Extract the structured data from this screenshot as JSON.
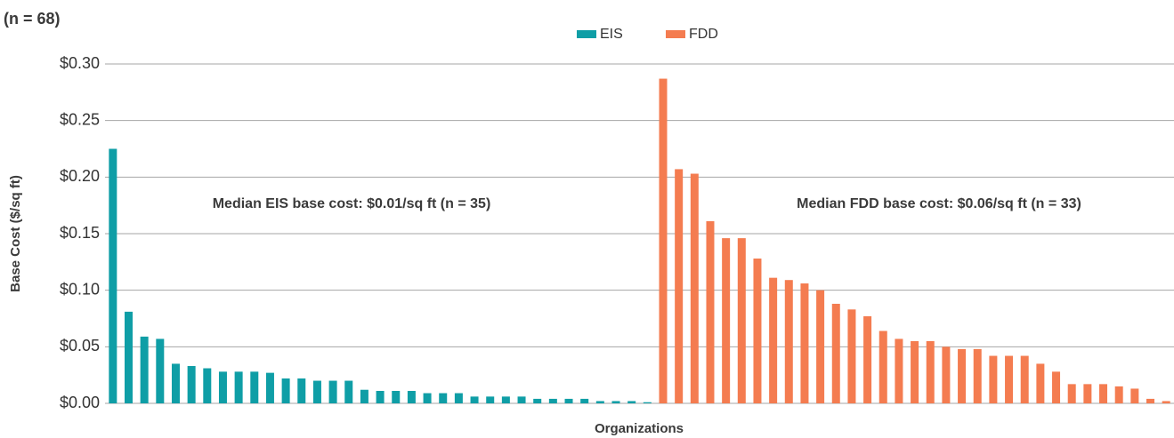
{
  "chart_data": {
    "type": "bar",
    "subtitle": "(n = 68)",
    "ylabel": "Base Cost ($/sq ft)",
    "xlabel": "Organizations",
    "annotations": [
      "Median EIS base cost: $0.01/sq ft (n = 35)",
      "Median FDD base cost: $0.06/sq ft (n = 33)"
    ],
    "legend": "top",
    "grid": true,
    "ylim": [
      0,
      0.3
    ],
    "yticks": [
      {
        "value": 0,
        "label": "$0.00"
      },
      {
        "value": 0.05,
        "label": "$0.05"
      },
      {
        "value": 0.1,
        "label": "$0.10"
      },
      {
        "value": 0.15,
        "label": "$0.15"
      },
      {
        "value": 0.2,
        "label": "$0.20"
      },
      {
        "value": 0.25,
        "label": "$0.25"
      },
      {
        "value": 0.3,
        "label": "$0.30"
      }
    ],
    "categories": [
      null,
      null,
      null,
      null,
      null,
      null,
      null,
      null,
      null,
      null,
      null,
      null,
      null,
      null,
      null,
      null,
      null,
      null,
      null,
      null,
      null,
      null,
      null,
      null,
      null,
      null,
      null,
      null,
      null,
      null,
      null,
      null,
      null,
      null,
      null,
      null,
      null,
      null,
      null,
      null,
      null,
      null,
      null,
      null,
      null,
      null,
      null,
      null,
      null,
      null,
      null,
      null,
      null,
      null,
      null,
      null,
      null,
      null,
      null,
      null,
      null,
      null,
      null,
      null,
      null,
      null,
      null,
      null
    ],
    "series": [
      {
        "name": "EIS",
        "color": "#0f9ea6",
        "values": [
          0.225,
          0.081,
          0.059,
          0.057,
          0.035,
          0.033,
          0.031,
          0.028,
          0.028,
          0.028,
          0.027,
          0.022,
          0.022,
          0.02,
          0.02,
          0.02,
          0.012,
          0.011,
          0.011,
          0.011,
          0.009,
          0.009,
          0.009,
          0.006,
          0.006,
          0.006,
          0.006,
          0.004,
          0.004,
          0.004,
          0.004,
          0.002,
          0.002,
          0.002,
          0.001,
          null,
          null,
          null,
          null,
          null,
          null,
          null,
          null,
          null,
          null,
          null,
          null,
          null,
          null,
          null,
          null,
          null,
          null,
          null,
          null,
          null,
          null,
          null,
          null,
          null,
          null,
          null,
          null,
          null,
          null,
          null,
          null,
          null
        ]
      },
      {
        "name": "FDD",
        "color": "#f47c50",
        "values": [
          null,
          null,
          null,
          null,
          null,
          null,
          null,
          null,
          null,
          null,
          null,
          null,
          null,
          null,
          null,
          null,
          null,
          null,
          null,
          null,
          null,
          null,
          null,
          null,
          null,
          null,
          null,
          null,
          null,
          null,
          null,
          null,
          null,
          null,
          null,
          0.287,
          0.207,
          0.203,
          0.161,
          0.146,
          0.146,
          0.128,
          0.111,
          0.109,
          0.106,
          0.1,
          0.088,
          0.083,
          0.077,
          0.064,
          0.057,
          0.055,
          0.055,
          0.05,
          0.048,
          0.048,
          0.042,
          0.042,
          0.042,
          0.035,
          0.028,
          0.017,
          0.017,
          0.017,
          0.015,
          0.013,
          0.004,
          0.002
        ]
      }
    ]
  }
}
